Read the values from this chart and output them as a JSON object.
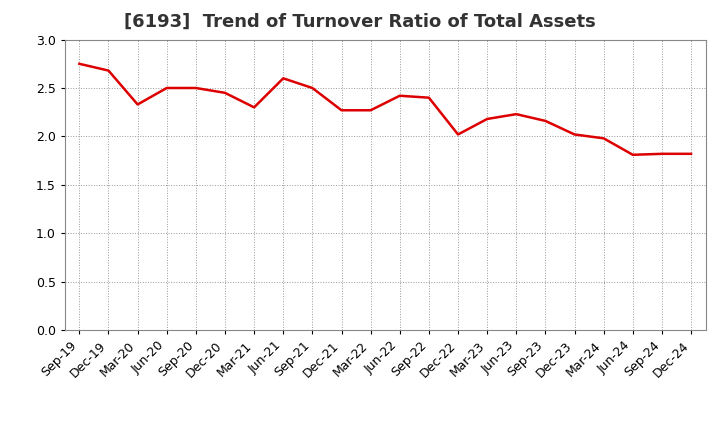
{
  "title": "[6193]  Trend of Turnover Ratio of Total Assets",
  "labels": [
    "Sep-19",
    "Dec-19",
    "Mar-20",
    "Jun-20",
    "Sep-20",
    "Dec-20",
    "Mar-21",
    "Jun-21",
    "Sep-21",
    "Dec-21",
    "Mar-22",
    "Jun-22",
    "Sep-22",
    "Dec-22",
    "Mar-23",
    "Jun-23",
    "Sep-23",
    "Dec-23",
    "Mar-24",
    "Jun-24",
    "Sep-24",
    "Dec-24"
  ],
  "values": [
    2.75,
    2.68,
    2.33,
    2.5,
    2.5,
    2.45,
    2.3,
    2.6,
    2.5,
    2.27,
    2.27,
    2.42,
    2.4,
    2.02,
    2.18,
    2.23,
    2.16,
    2.02,
    1.98,
    1.81,
    1.82,
    1.82
  ],
  "line_color": "#dd0000",
  "line_width": 1.8,
  "ylim": [
    0.0,
    3.0
  ],
  "yticks": [
    0.0,
    0.5,
    1.0,
    1.5,
    2.0,
    2.5,
    3.0
  ],
  "background_color": "#ffffff",
  "grid_color": "#999999",
  "title_fontsize": 13,
  "tick_fontsize": 9,
  "title_color": "#333333"
}
